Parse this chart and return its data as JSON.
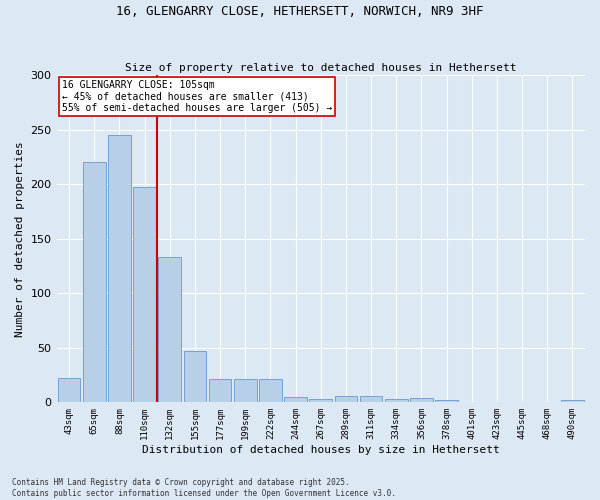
{
  "title": "16, GLENGARRY CLOSE, HETHERSETT, NORWICH, NR9 3HF",
  "subtitle": "Size of property relative to detached houses in Hethersett",
  "xlabel": "Distribution of detached houses by size in Hethersett",
  "ylabel": "Number of detached properties",
  "categories": [
    "43sqm",
    "65sqm",
    "88sqm",
    "110sqm",
    "132sqm",
    "155sqm",
    "177sqm",
    "199sqm",
    "222sqm",
    "244sqm",
    "267sqm",
    "289sqm",
    "311sqm",
    "334sqm",
    "356sqm",
    "378sqm",
    "401sqm",
    "423sqm",
    "445sqm",
    "468sqm",
    "490sqm"
  ],
  "values": [
    22,
    220,
    245,
    197,
    133,
    47,
    21,
    21,
    21,
    5,
    3,
    6,
    6,
    3,
    4,
    2,
    0,
    0,
    0,
    0,
    2
  ],
  "bar_color": "#b8cfe8",
  "bar_edge_color": "#6699cc",
  "background_color": "#dde8f5",
  "grid_color": "#ffffff",
  "property_label": "16 GLENGARRY CLOSE: 105sqm",
  "annotation_line1": "← 45% of detached houses are smaller (413)",
  "annotation_line2": "55% of semi-detached houses are larger (505) →",
  "vline_color": "#cc0000",
  "vline_x_index": 3.5,
  "annotation_box_color": "#cc0000",
  "footer1": "Contains HM Land Registry data © Crown copyright and database right 2025.",
  "footer2": "Contains public sector information licensed under the Open Government Licence v3.0.",
  "ylim": [
    0,
    300
  ],
  "yticks": [
    0,
    50,
    100,
    150,
    200,
    250,
    300
  ],
  "title_fontsize": 9,
  "subtitle_fontsize": 8,
  "xlabel_fontsize": 8,
  "ylabel_fontsize": 8,
  "xtick_fontsize": 6.5,
  "ytick_fontsize": 8,
  "annotation_fontsize": 7,
  "footer_fontsize": 5.5
}
